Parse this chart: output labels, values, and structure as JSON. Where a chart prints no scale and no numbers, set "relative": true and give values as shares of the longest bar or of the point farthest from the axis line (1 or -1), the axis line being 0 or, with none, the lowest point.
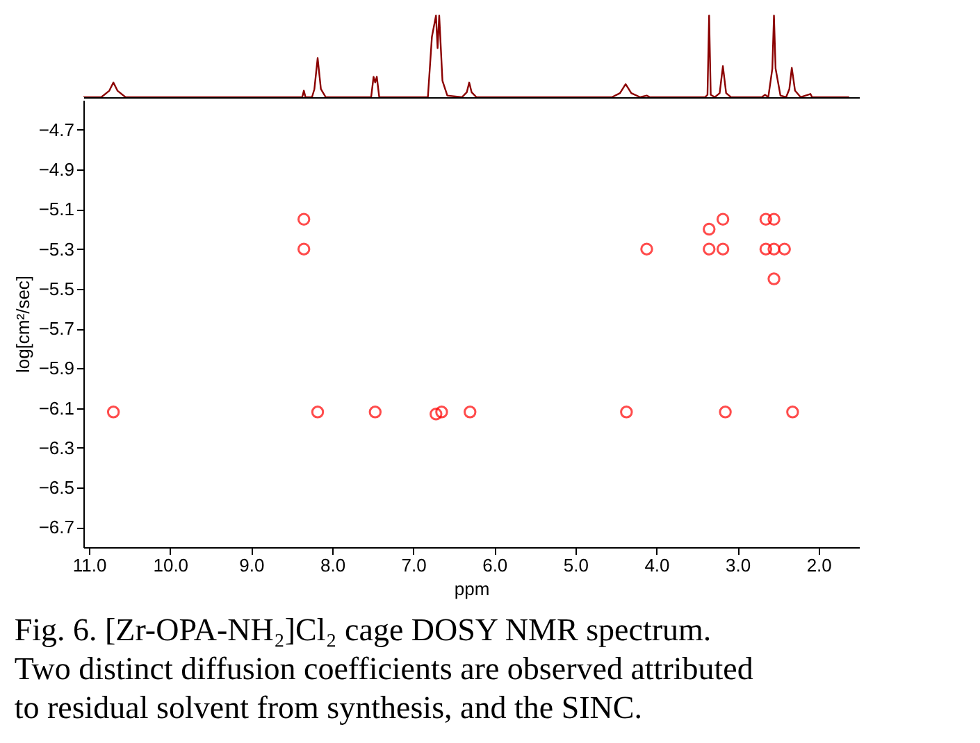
{
  "chart_data": [
    {
      "type": "line",
      "relative": true,
      "tick_labels": false,
      "grid": false,
      "line_style": "solid",
      "xlim": [
        11.07,
        1.5
      ],
      "series": [
        {
          "color": "#8b0000",
          "x": [
            11.07,
            10.85,
            10.75,
            10.7,
            10.65,
            10.55,
            8.37,
            8.35,
            8.33,
            8.25,
            8.22,
            8.18,
            8.14,
            8.08,
            7.52,
            7.49,
            7.47,
            7.45,
            7.42,
            6.82,
            6.77,
            6.72,
            6.7,
            6.68,
            6.64,
            6.58,
            6.4,
            6.34,
            6.31,
            6.28,
            6.22,
            4.55,
            4.45,
            4.38,
            4.31,
            4.2,
            4.12,
            4.08,
            3.4,
            3.37,
            3.35,
            3.33,
            3.28,
            3.22,
            3.18,
            3.14,
            3.08,
            2.7,
            2.66,
            2.62,
            2.57,
            2.55,
            2.53,
            2.47,
            2.4,
            2.36,
            2.33,
            2.29,
            2.22,
            2.1,
            2.08,
            1.63
          ],
          "values": [
            0,
            0,
            0.08,
            0.18,
            0.08,
            0,
            0,
            0.08,
            0,
            0,
            0.1,
            0.48,
            0.1,
            0,
            0,
            0.25,
            0.18,
            0.25,
            0,
            0,
            0.74,
            1.0,
            0.6,
            1.0,
            0.2,
            0.02,
            0,
            0.06,
            0.18,
            0.06,
            0,
            0,
            0.05,
            0.16,
            0.05,
            0,
            0.02,
            0,
            0,
            0.03,
            1.0,
            0.03,
            0,
            0.05,
            0.38,
            0.05,
            0,
            0,
            0.03,
            0,
            0.35,
            1.0,
            0.35,
            0.02,
            0,
            0.1,
            0.36,
            0.08,
            0,
            0.04,
            0,
            0
          ]
        }
      ]
    },
    {
      "type": "scatter",
      "xlabel": "ppm",
      "ylabel": "log[cm²/sec]",
      "grid": false,
      "marker": "circle",
      "xlim": [
        11.07,
        1.5
      ],
      "ylim": [
        -6.8,
        -4.55
      ],
      "xticks": [
        {
          "value": 11,
          "label": "11.0"
        },
        {
          "value": 10,
          "label": "10.0"
        },
        {
          "value": 9,
          "label": "9.0"
        },
        {
          "value": 8,
          "label": "8.0"
        },
        {
          "value": 7,
          "label": "7.0"
        },
        {
          "value": 6,
          "label": "6.0"
        },
        {
          "value": 5,
          "label": "5.0"
        },
        {
          "value": 4,
          "label": "4.0"
        },
        {
          "value": 3,
          "label": "3.0"
        },
        {
          "value": 2,
          "label": "2.0"
        }
      ],
      "yticks": [
        -4.7,
        -4.9,
        -5.1,
        -5.3,
        -5.5,
        -5.7,
        -5.9,
        -6.1,
        -6.3,
        -6.5,
        -6.7
      ],
      "series": [
        {
          "color": "#ff0000",
          "x": [
            10.7,
            8.18,
            7.47,
            6.72,
            6.65,
            6.3,
            4.37,
            3.15,
            2.32,
            8.35,
            8.35,
            4.12,
            3.35,
            3.35,
            3.18,
            3.18,
            2.65,
            2.65,
            2.55,
            2.55,
            2.55,
            2.42
          ],
          "values": [
            -6.12,
            -6.12,
            -6.12,
            -6.13,
            -6.12,
            -6.12,
            -6.12,
            -6.12,
            -6.12,
            -5.15,
            -5.3,
            -5.3,
            -5.2,
            -5.3,
            -5.15,
            -5.3,
            -5.15,
            -5.3,
            -5.15,
            -5.3,
            -5.45,
            -5.3
          ]
        }
      ],
      "annotations": [
        "Fig. 6. [Zr-OPA-NH₂]Cl₂ cage DOSY NMR spectrum.",
        "Two distinct diffusion coefficients are observed attributed",
        "to residual solvent from synthesis, and the SINC."
      ]
    }
  ]
}
